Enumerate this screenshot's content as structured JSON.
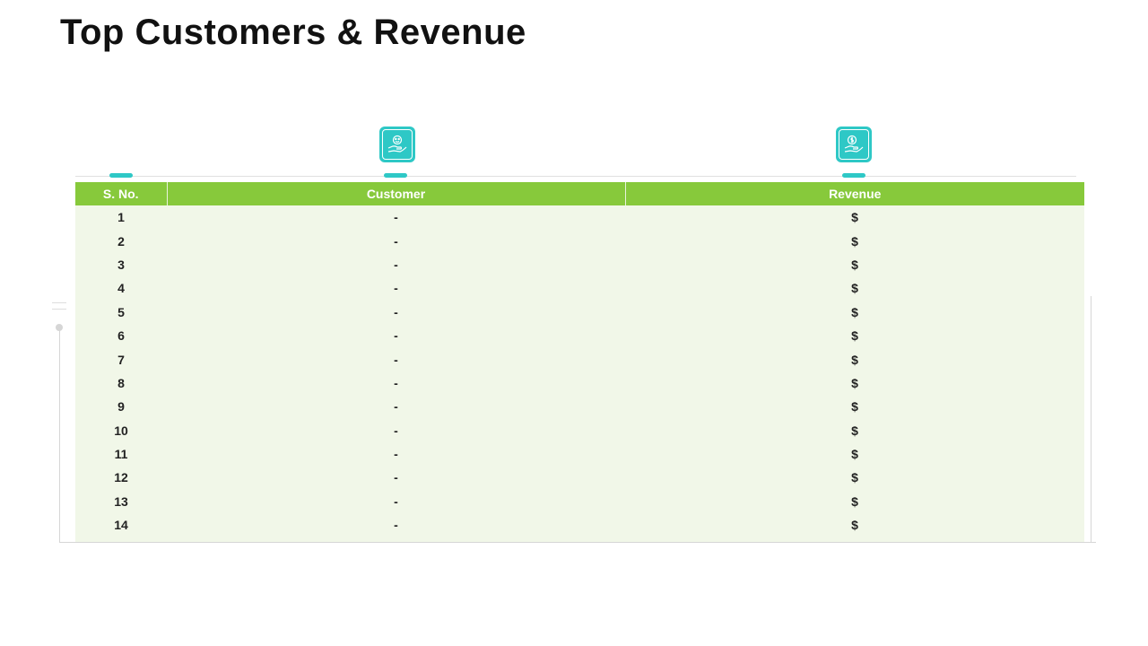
{
  "page": {
    "title": "Top Customers & Revenue"
  },
  "icons": {
    "customer": "customer-hand-icon",
    "revenue": "money-hand-icon"
  },
  "colors": {
    "header_bg": "#87c93b",
    "row_bg": "#f1f7e8",
    "accent": "#2ec8c6"
  },
  "table": {
    "headers": [
      "S. No.",
      "Customer",
      "Revenue"
    ],
    "rows": [
      [
        "1",
        "-",
        "$"
      ],
      [
        "2",
        "-",
        "$"
      ],
      [
        "3",
        "-",
        "$"
      ],
      [
        "4",
        "-",
        "$"
      ],
      [
        "5",
        "-",
        "$"
      ],
      [
        "6",
        "-",
        "$"
      ],
      [
        "7",
        "-",
        "$"
      ],
      [
        "8",
        "-",
        "$"
      ],
      [
        "9",
        "-",
        "$"
      ],
      [
        "10",
        "-",
        "$"
      ],
      [
        "11",
        "-",
        "$"
      ],
      [
        "12",
        "-",
        "$"
      ],
      [
        "13",
        "-",
        "$"
      ],
      [
        "14",
        "-",
        "$"
      ]
    ]
  }
}
